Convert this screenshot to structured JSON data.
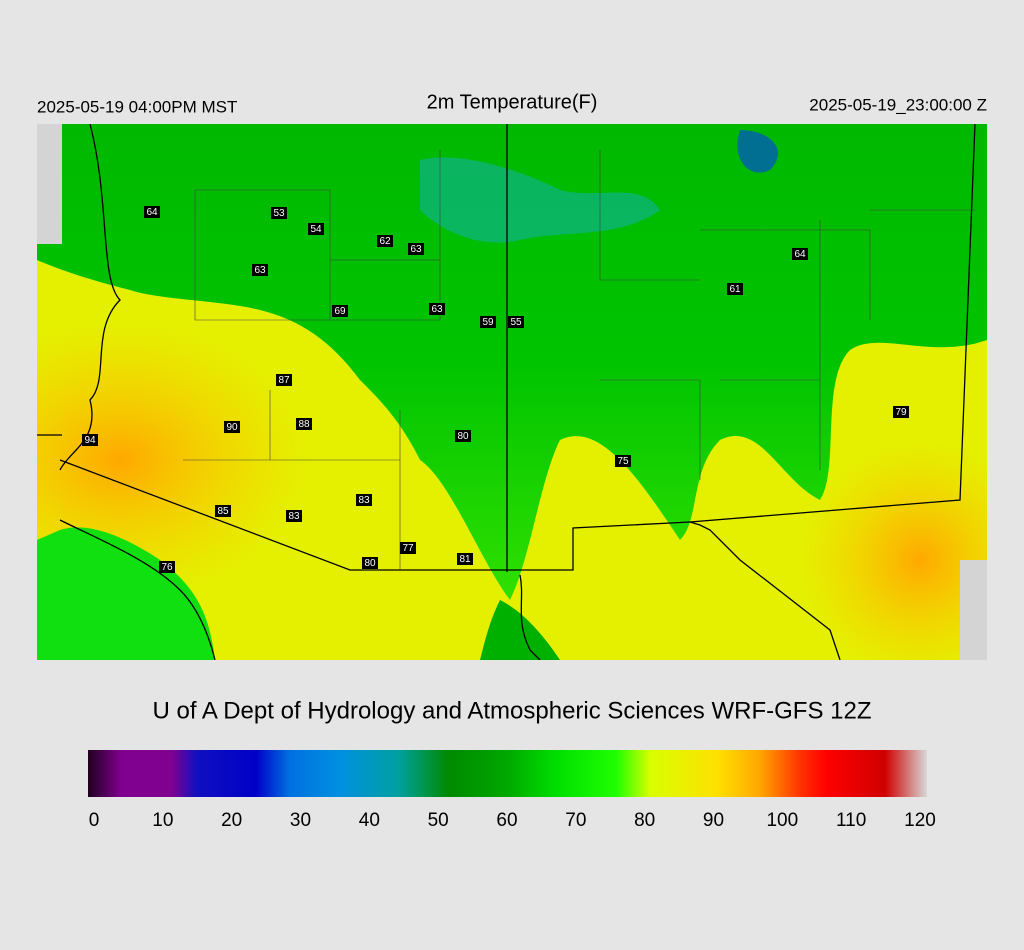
{
  "header": {
    "left": "2025-05-19 04:00PM MST",
    "title": "2m Temperature(F)",
    "right": "2025-05-19_23:00:00 Z"
  },
  "stations": [
    64,
    53,
    54,
    62,
    63,
    63,
    69,
    63,
    59,
    55,
    64,
    61,
    87,
    90,
    88,
    80,
    94,
    79,
    75,
    83,
    85,
    83,
    77,
    80,
    81,
    76
  ],
  "credit": "U of A Dept of Hydrology and Atmospheric Sciences WRF-GFS 12Z",
  "colorbar": {
    "range": [
      0,
      120
    ],
    "ticks": [
      0,
      10,
      20,
      30,
      40,
      50,
      60,
      70,
      80,
      90,
      100,
      110,
      120
    ]
  }
}
